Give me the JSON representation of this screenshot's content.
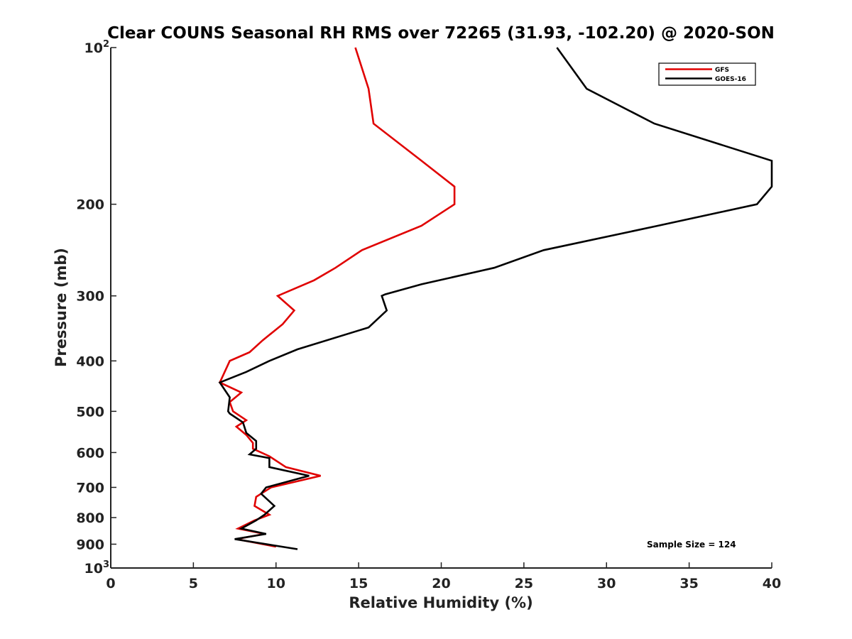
{
  "chart_data": {
    "type": "line",
    "title": "Clear COUNS Seasonal RH RMS over 72265 (31.93, -102.20) @ 2020-SON",
    "xlabel": "Relative Humidity (%)",
    "ylabel": "Pressure (mb)",
    "xlim": [
      0,
      40
    ],
    "ylim": [
      100,
      1000
    ],
    "yscale": "log",
    "y_reversed": true,
    "xticks": [
      0,
      5,
      10,
      15,
      20,
      25,
      30,
      35,
      40
    ],
    "yticks": [
      {
        "value": 100,
        "label": "10",
        "sup": "2"
      },
      {
        "value": 200,
        "label": "200"
      },
      {
        "value": 300,
        "label": "300"
      },
      {
        "value": 400,
        "label": "400"
      },
      {
        "value": 500,
        "label": "500"
      },
      {
        "value": 600,
        "label": "600"
      },
      {
        "value": 700,
        "label": "700"
      },
      {
        "value": 800,
        "label": "800"
      },
      {
        "value": 900,
        "label": "900"
      },
      {
        "value": 1000,
        "label": "10",
        "sup": "3"
      }
    ],
    "grid": false,
    "legend_position": "top-right",
    "annotation": "Sample Size = 124",
    "series": [
      {
        "name": "GFS",
        "color": "#e00000",
        "x": [
          14.8,
          15.6,
          15.9,
          18.8,
          20.8,
          20.8,
          18.8,
          15.2,
          13.6,
          12.3,
          10.1,
          11.1,
          10.4,
          9.2,
          8.4,
          7.2,
          6.6,
          7.9,
          7.2,
          7.4,
          8.2,
          7.6,
          8.2,
          8.6,
          8.6,
          9.6,
          10.6,
          12.7,
          9.7,
          8.8,
          8.7,
          9.6,
          8.7,
          7.7,
          9.3,
          7.6,
          10.0
        ],
        "y": [
          100,
          120,
          140,
          165,
          185,
          200,
          220,
          245,
          265,
          280,
          300,
          320,
          340,
          365,
          385,
          400,
          440,
          460,
          480,
          500,
          520,
          535,
          555,
          575,
          590,
          610,
          640,
          665,
          700,
          730,
          760,
          790,
          810,
          840,
          860,
          880,
          910
        ]
      },
      {
        "name": "GOES-16",
        "color": "#000000",
        "x": [
          27.0,
          28.8,
          32.9,
          40.0,
          40.0,
          40.0,
          39.1,
          33.1,
          26.2,
          23.2,
          18.8,
          16.6,
          16.4,
          16.7,
          15.6,
          11.3,
          9.6,
          8.2,
          6.6,
          7.2,
          7.1,
          7.2,
          8.0,
          8.2,
          8.8,
          8.8,
          8.4,
          9.6,
          9.6,
          12.0,
          9.4,
          9.1,
          9.9,
          9.3,
          8.8,
          7.9,
          9.4,
          7.5,
          11.3
        ],
        "y": [
          100,
          120,
          140,
          165,
          175,
          185,
          200,
          220,
          245,
          265,
          285,
          298,
          300,
          320,
          345,
          380,
          400,
          420,
          440,
          470,
          500,
          505,
          525,
          550,
          570,
          590,
          605,
          615,
          640,
          665,
          700,
          720,
          760,
          790,
          810,
          840,
          860,
          880,
          920
        ]
      }
    ]
  }
}
